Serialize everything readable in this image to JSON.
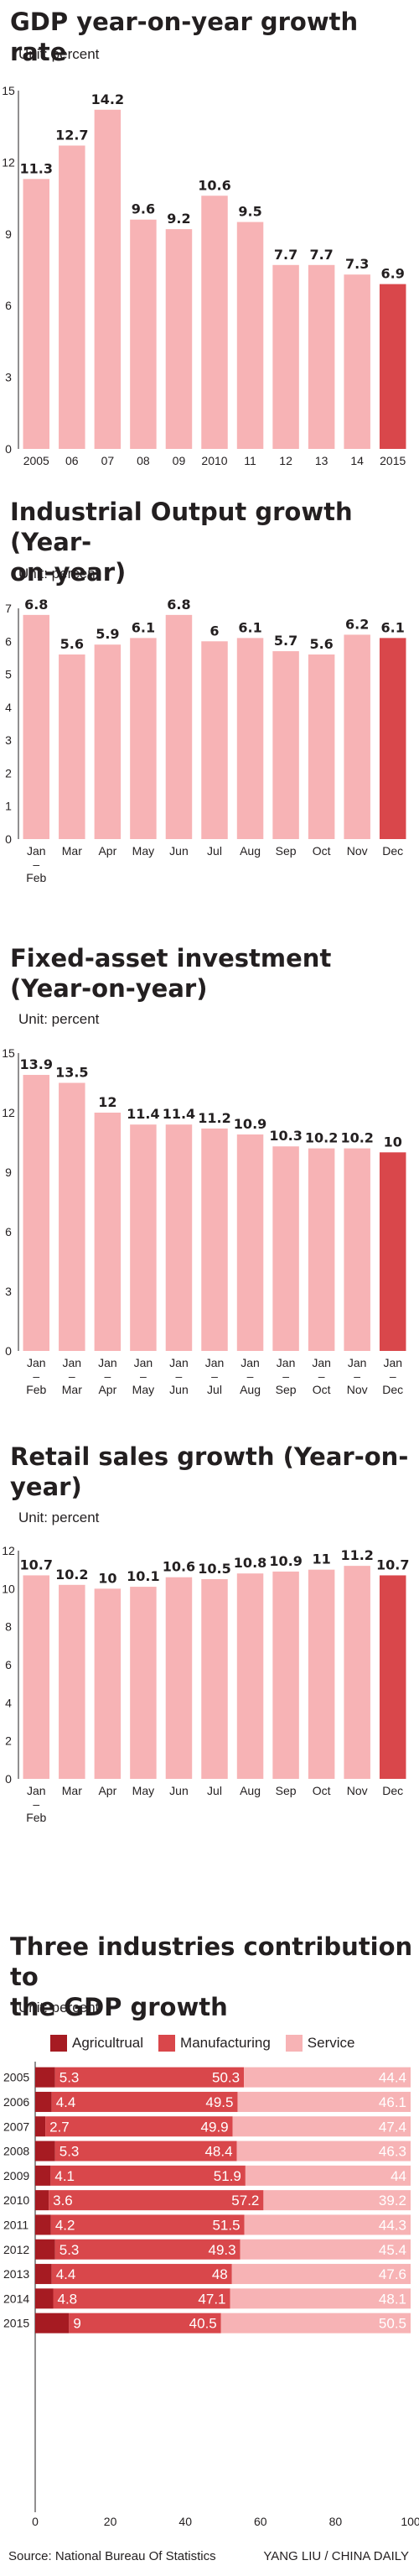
{
  "colors": {
    "pink": "#f7b3b5",
    "red": "#d9474b",
    "dark_red": "#a61b22",
    "text": "#231f20",
    "axis": "#231f20"
  },
  "charts": [
    {
      "title": "GDP year-on-year growth rate",
      "unit": "Unit: percent",
      "chart_data": {
        "type": "bar",
        "categories": [
          "2005",
          "06",
          "07",
          "08",
          "09",
          "2010",
          "11",
          "12",
          "13",
          "14",
          "2015"
        ],
        "values": [
          11.3,
          12.7,
          14.2,
          9.6,
          9.2,
          10.6,
          9.5,
          7.7,
          7.7,
          7.3,
          6.9
        ],
        "value_labels": [
          "11.3",
          "12.7",
          "14.2",
          "9.6",
          "9.2",
          "10.6",
          "9.5",
          "7.7",
          "7.7",
          "7.3",
          "6.9"
        ],
        "highlight_last": true,
        "yticks": [
          0,
          3,
          6,
          9,
          12,
          15
        ],
        "ylim": [
          0,
          15
        ]
      }
    },
    {
      "title_lines": [
        "Industrial Output growth (Year-",
        "on-year)"
      ],
      "unit": "Unit: percent",
      "chart_data": {
        "type": "bar",
        "categories": [
          [
            "Jan",
            "–",
            "Feb"
          ],
          [
            "Mar"
          ],
          [
            "Apr"
          ],
          [
            "May"
          ],
          [
            "Jun"
          ],
          [
            "Jul"
          ],
          [
            "Aug"
          ],
          [
            "Sep"
          ],
          [
            "Oct"
          ],
          [
            "Nov"
          ],
          [
            "Dec"
          ]
        ],
        "values": [
          6.8,
          5.6,
          5.9,
          6.1,
          6.8,
          6,
          6.1,
          5.7,
          5.6,
          6.2,
          6.1
        ],
        "value_labels": [
          "6.8",
          "5.6",
          "5.9",
          "6.1",
          "6.8",
          "6",
          "6.1",
          "5.7",
          "5.6",
          "6.2",
          "6.1"
        ],
        "highlight_last": true,
        "yticks": [
          0,
          1,
          2,
          3,
          4,
          5,
          6,
          7
        ],
        "ylim": [
          0,
          7
        ]
      }
    },
    {
      "title_lines": [
        "Fixed-asset investment",
        "(Year-on-year)"
      ],
      "unit": "Unit: percent",
      "chart_data": {
        "type": "bar",
        "categories": [
          [
            "Jan",
            "–",
            "Feb"
          ],
          [
            "Jan",
            "–",
            "Mar"
          ],
          [
            "Jan",
            "–",
            "Apr"
          ],
          [
            "Jan",
            "–",
            "May"
          ],
          [
            "Jan",
            "–",
            "Jun"
          ],
          [
            "Jan",
            "–",
            "Jul"
          ],
          [
            "Jan",
            "–",
            "Aug"
          ],
          [
            "Jan",
            "–",
            "Sep"
          ],
          [
            "Jan",
            "–",
            "Oct"
          ],
          [
            "Jan",
            "–",
            "Nov"
          ],
          [
            "Jan",
            "–",
            "Dec"
          ]
        ],
        "values": [
          13.9,
          13.5,
          12,
          11.4,
          11.4,
          11.2,
          10.9,
          10.3,
          10.2,
          10.2,
          10
        ],
        "value_labels": [
          "13.9",
          "13.5",
          "12",
          "11.4",
          "11.4",
          "11.2",
          "10.9",
          "10.3",
          "10.2",
          "10.2",
          "10"
        ],
        "highlight_last": true,
        "yticks": [
          0,
          3,
          6,
          9,
          12,
          15
        ],
        "ylim": [
          0,
          15
        ]
      }
    },
    {
      "title_lines": [
        "Retail sales growth (Year-on-",
        "year)"
      ],
      "unit": "Unit: percent",
      "chart_data": {
        "type": "bar",
        "categories": [
          [
            "Jan",
            "–",
            "Feb"
          ],
          [
            "Mar"
          ],
          [
            "Apr"
          ],
          [
            "May"
          ],
          [
            "Jun"
          ],
          [
            "Jul"
          ],
          [
            "Aug"
          ],
          [
            "Sep"
          ],
          [
            "Oct"
          ],
          [
            "Nov"
          ],
          [
            "Dec"
          ]
        ],
        "values": [
          10.7,
          10.2,
          10,
          10.1,
          10.6,
          10.5,
          10.8,
          10.9,
          11,
          11.2,
          10.7
        ],
        "value_labels": [
          "10.7",
          "10.2",
          "10",
          "10.1",
          "10.6",
          "10.5",
          "10.8",
          "10.9",
          "11",
          "11.2",
          "10.7"
        ],
        "highlight_last": true,
        "yticks": [
          0,
          2,
          4,
          6,
          8,
          10,
          12
        ],
        "ylim": [
          0,
          12
        ]
      }
    }
  ],
  "stacked": {
    "title_lines": [
      "Three industries contribution to",
      "the GDP growth"
    ],
    "unit": "Unit: percent",
    "chart_data": {
      "type": "bar",
      "orientation": "horizontal-stacked",
      "categories": [
        "2005",
        "2006",
        "2007",
        "2008",
        "2009",
        "2010",
        "2011",
        "2012",
        "2013",
        "2014",
        "2015"
      ],
      "series": [
        {
          "name": "Agricultrual",
          "color_key": "dark_red",
          "values": [
            5.3,
            4.4,
            2.7,
            5.3,
            4.1,
            3.6,
            4.2,
            5.3,
            4.4,
            4.8,
            9
          ],
          "labels": [
            "5.3",
            "4.4",
            "2.7",
            "5.3",
            "4.1",
            "3.6",
            "4.2",
            "5.3",
            "4.4",
            "4.8",
            "9"
          ]
        },
        {
          "name": "Manufacturing",
          "color_key": "red",
          "values": [
            50.3,
            49.5,
            49.9,
            48.4,
            51.9,
            57.2,
            51.5,
            49.3,
            48,
            47.1,
            40.5
          ],
          "labels": [
            "50.3",
            "49.5",
            "49.9",
            "48.4",
            "51.9",
            "57.2",
            "51.5",
            "49.3",
            "48",
            "47.1",
            "40.5"
          ]
        },
        {
          "name": "Service",
          "color_key": "pink",
          "values": [
            44.4,
            46.1,
            47.4,
            46.3,
            44,
            39.2,
            44.3,
            45.4,
            47.6,
            48.1,
            50.5
          ],
          "labels": [
            "44.4",
            "46.1",
            "47.4",
            "46.3",
            "44",
            "39.2",
            "44.3",
            "45.4",
            "47.6",
            "48.1",
            "50.5"
          ]
        }
      ],
      "xticks": [
        "0",
        "20",
        "40",
        "60",
        "80",
        "100"
      ],
      "xlim": [
        0,
        100
      ]
    }
  },
  "footer": {
    "source": "Source: National Bureau Of Statistics",
    "credit": "YANG LIU / CHINA DAILY"
  }
}
